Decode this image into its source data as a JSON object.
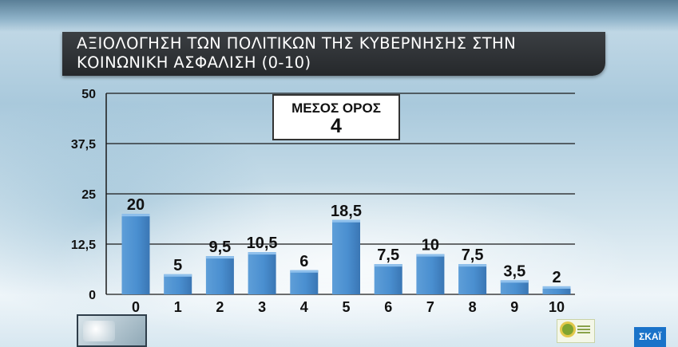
{
  "title": "ΑΞΙΟΛΟΓΗΣΗ ΤΩΝ ΠΟΛΙΤΙΚΩΝ ΤΗΣ ΚΥΒΕΡΝΗΣΗΣ ΣΤΗΝ\nΚΟΙΝΩΝΙΚΗ ΑΣΦΑΛΙΣΗ (0-10)",
  "average_box": {
    "label": "ΜΕΣΟΣ ΟΡΟΣ",
    "value": "4"
  },
  "channel_logo": "ΣΚΑΪ",
  "chart_data": {
    "type": "bar",
    "title": "ΑΞΙΟΛΟΓΗΣΗ ΤΩΝ ΠΟΛΙΤΙΚΩΝ ΤΗΣ ΚΥΒΕΡΝΗΣΗΣ ΣΤΗΝ ΚΟΙΝΩΝΙΚΗ ΑΣΦΑΛΙΣΗ (0-10)",
    "categories": [
      "0",
      "1",
      "2",
      "3",
      "4",
      "5",
      "6",
      "7",
      "8",
      "9",
      "10"
    ],
    "values": [
      20,
      5,
      9.5,
      10.5,
      6,
      18.5,
      7.5,
      10,
      7.5,
      3.5,
      2
    ],
    "value_labels": [
      "20",
      "5",
      "9,5",
      "10,5",
      "6",
      "18,5",
      "7,5",
      "10",
      "7,5",
      "3,5",
      "2"
    ],
    "yticks": [
      0,
      12.5,
      25,
      37.5,
      50
    ],
    "ytick_labels": [
      "0",
      "12,5",
      "25",
      "37,5",
      "50"
    ],
    "ylim": [
      0,
      50
    ],
    "grid": true,
    "colors": {
      "bar": "#4a8fd0",
      "bar_top": "#8fc0ec",
      "grid": "#1a1a1a",
      "label": "#111111"
    }
  }
}
